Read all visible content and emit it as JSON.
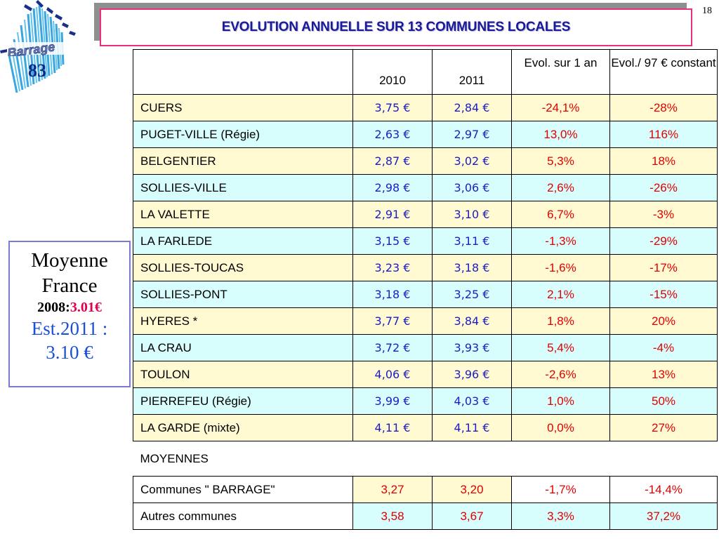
{
  "slide": {
    "number": "18",
    "title": "EVOLUTION ANNUELLE SUR 13 COMMUNES LOCALES"
  },
  "logo": {
    "name": "Barrage",
    "number": "83"
  },
  "moyenne": {
    "line1": "Moyenne",
    "line2": "France",
    "line3_prefix": "2008:",
    "line3_value": "3.01€",
    "line4": "Est.2011 :",
    "line5": "3.10 €"
  },
  "table": {
    "headers": [
      "",
      "2010",
      "2011",
      "Evol. sur 1 an",
      "Evol./ 97 € constant"
    ],
    "rows": [
      {
        "name": "CUERS",
        "v2010": "3,75 €",
        "v2011": "2,84 €",
        "evol1": "-24,1%",
        "evol97": "-28%"
      },
      {
        "name": "PUGET-VILLE   (Régie)",
        "v2010": "2,63 €",
        "v2011": "2,97 €",
        "evol1": "13,0%",
        "evol97": "116%"
      },
      {
        "name": "BELGENTIER",
        "v2010": "2,87 €",
        "v2011": "3,02 €",
        "evol1": "5,3%",
        "evol97": "18%"
      },
      {
        "name": "SOLLIES-VILLE",
        "v2010": "2,98 €",
        "v2011": "3,06 €",
        "evol1": "2,6%",
        "evol97": "-26%"
      },
      {
        "name": "LA VALETTE",
        "v2010": "2,91 €",
        "v2011": "3,10 €",
        "evol1": "6,7%",
        "evol97": "-3%"
      },
      {
        "name": "LA FARLEDE",
        "v2010": "3,15 €",
        "v2011": "3,11 €",
        "evol1": "-1,3%",
        "evol97": "-29%"
      },
      {
        "name": "SOLLIES-TOUCAS",
        "v2010": "3,23 €",
        "v2011": "3,18 €",
        "evol1": "-1,6%",
        "evol97": "-17%"
      },
      {
        "name": "SOLLIES-PONT",
        "v2010": "3,18 €",
        "v2011": "3,25 €",
        "evol1": "2,1%",
        "evol97": "-15%"
      },
      {
        "name": "HYERES *",
        "v2010": "3,77 €",
        "v2011": "3,84 €",
        "evol1": "1,8%",
        "evol97": "20%"
      },
      {
        "name": "LA CRAU",
        "v2010": "3,72 €",
        "v2011": "3,93 €",
        "evol1": "5,4%",
        "evol97": "-4%"
      },
      {
        "name": "TOULON",
        "v2010": "4,06 €",
        "v2011": "3,96 €",
        "evol1": "-2,6%",
        "evol97": "13%"
      },
      {
        "name": "PIERREFEU     (Régie)",
        "v2010": "3,99 €",
        "v2011": "4,03 €",
        "evol1": "1,0%",
        "evol97": "50%"
      },
      {
        "name": "LA GARDE (mixte)",
        "v2010": "4,11 €",
        "v2011": "4,11 €",
        "evol1": "0,0%",
        "evol97": "27%"
      }
    ],
    "section_label": "MOYENNES",
    "averages": [
      {
        "name": "Communes \" BARRAGE\"",
        "v2010": "3,27",
        "v2011": "3,20",
        "evol1": "-1,7%",
        "evol97": "-14,4%"
      },
      {
        "name": "Autres communes",
        "v2010": "3,58",
        "v2011": "3,67",
        "evol1": "3,3%",
        "evol97": "37,2%"
      }
    ]
  },
  "colors": {
    "title_border": "#e7327b",
    "title_text": "#1a1a9a",
    "value_blue": "#1c1cc8",
    "value_red": "#e00000",
    "row_yellow": "#fffad2",
    "row_cyan": "#d8fdfd"
  }
}
